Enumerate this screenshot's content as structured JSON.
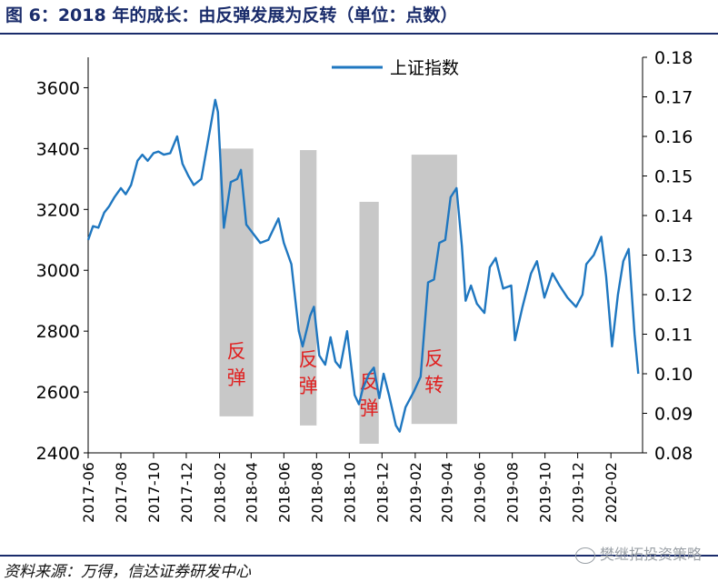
{
  "figure": {
    "title": "图 6：2018 年的成长：由反弹发展为反转（单位：点数）",
    "source": "资料来源：万得，信达证券研发中心",
    "watermark": "樊继拓投资策略"
  },
  "chart_data": {
    "type": "line",
    "title": "",
    "xlabel": "",
    "ylabel": "",
    "y_left_lim": [
      2400,
      3700
    ],
    "y_left_ticks": [
      "2400",
      "2600",
      "2800",
      "3000",
      "3200",
      "3400",
      "3600"
    ],
    "y_right_lim": [
      0.08,
      0.18
    ],
    "y_right_ticks": [
      "0.08",
      "0.09",
      "0.10",
      "0.11",
      "0.12",
      "0.13",
      "0.14",
      "0.15",
      "0.16",
      "0.17",
      "0.18"
    ],
    "x_ticks": [
      "2017-06",
      "2017-08",
      "2017-10",
      "2017-12",
      "2018-02",
      "2018-04",
      "2018-06",
      "2018-08",
      "2018-10",
      "2018-12",
      "2019-02",
      "2019-04",
      "2019-06",
      "2019-08",
      "2019-10",
      "2019-12",
      "2020-02"
    ],
    "legend": {
      "position": "top-center",
      "entries": [
        "上证指数"
      ]
    },
    "grid": false,
    "series": [
      {
        "name": "上证指数",
        "axis": "left",
        "color": "#1f77c0",
        "points": [
          [
            "2017-06-01",
            3100
          ],
          [
            "2017-06-10",
            3145
          ],
          [
            "2017-06-20",
            3140
          ],
          [
            "2017-07-01",
            3190
          ],
          [
            "2017-07-10",
            3210
          ],
          [
            "2017-07-20",
            3240
          ],
          [
            "2017-08-01",
            3270
          ],
          [
            "2017-08-10",
            3250
          ],
          [
            "2017-08-20",
            3280
          ],
          [
            "2017-09-01",
            3360
          ],
          [
            "2017-09-10",
            3380
          ],
          [
            "2017-09-20",
            3360
          ],
          [
            "2017-10-01",
            3385
          ],
          [
            "2017-10-10",
            3390
          ],
          [
            "2017-10-20",
            3380
          ],
          [
            "2017-11-01",
            3385
          ],
          [
            "2017-11-14",
            3440
          ],
          [
            "2017-11-24",
            3350
          ],
          [
            "2017-12-05",
            3310
          ],
          [
            "2017-12-15",
            3280
          ],
          [
            "2017-12-29",
            3300
          ],
          [
            "2018-01-10",
            3420
          ],
          [
            "2018-01-24",
            3560
          ],
          [
            "2018-01-29",
            3520
          ],
          [
            "2018-02-09",
            3140
          ],
          [
            "2018-02-22",
            3290
          ],
          [
            "2018-03-06",
            3300
          ],
          [
            "2018-03-13",
            3330
          ],
          [
            "2018-03-23",
            3150
          ],
          [
            "2018-04-05",
            3120
          ],
          [
            "2018-04-18",
            3090
          ],
          [
            "2018-05-03",
            3100
          ],
          [
            "2018-05-22",
            3170
          ],
          [
            "2018-06-01",
            3090
          ],
          [
            "2018-06-15",
            3020
          ],
          [
            "2018-06-29",
            2800
          ],
          [
            "2018-07-06",
            2750
          ],
          [
            "2018-07-20",
            2850
          ],
          [
            "2018-07-27",
            2880
          ],
          [
            "2018-08-06",
            2720
          ],
          [
            "2018-08-17",
            2690
          ],
          [
            "2018-08-27",
            2780
          ],
          [
            "2018-09-05",
            2700
          ],
          [
            "2018-09-14",
            2680
          ],
          [
            "2018-09-27",
            2800
          ],
          [
            "2018-10-11",
            2590
          ],
          [
            "2018-10-19",
            2560
          ],
          [
            "2018-10-26",
            2610
          ],
          [
            "2018-11-07",
            2660
          ],
          [
            "2018-11-16",
            2680
          ],
          [
            "2018-11-26",
            2580
          ],
          [
            "2018-12-04",
            2660
          ],
          [
            "2018-12-14",
            2590
          ],
          [
            "2018-12-27",
            2490
          ],
          [
            "2019-01-03",
            2470
          ],
          [
            "2019-01-14",
            2550
          ],
          [
            "2019-01-29",
            2600
          ],
          [
            "2019-02-11",
            2650
          ],
          [
            "2019-02-25",
            2960
          ],
          [
            "2019-03-08",
            2970
          ],
          [
            "2019-03-18",
            3090
          ],
          [
            "2019-03-29",
            3100
          ],
          [
            "2019-04-08",
            3240
          ],
          [
            "2019-04-19",
            3270
          ],
          [
            "2019-04-29",
            3080
          ],
          [
            "2019-05-06",
            2900
          ],
          [
            "2019-05-16",
            2950
          ],
          [
            "2019-05-27",
            2890
          ],
          [
            "2019-06-10",
            2860
          ],
          [
            "2019-06-20",
            3010
          ],
          [
            "2019-07-01",
            3040
          ],
          [
            "2019-07-15",
            2940
          ],
          [
            "2019-07-30",
            2950
          ],
          [
            "2019-08-06",
            2770
          ],
          [
            "2019-08-20",
            2880
          ],
          [
            "2019-09-05",
            2990
          ],
          [
            "2019-09-16",
            3030
          ],
          [
            "2019-09-30",
            2910
          ],
          [
            "2019-10-15",
            2990
          ],
          [
            "2019-10-28",
            2950
          ],
          [
            "2019-11-12",
            2910
          ],
          [
            "2019-11-28",
            2880
          ],
          [
            "2019-12-10",
            2920
          ],
          [
            "2019-12-17",
            3020
          ],
          [
            "2019-12-31",
            3050
          ],
          [
            "2020-01-14",
            3110
          ],
          [
            "2020-01-23",
            2980
          ],
          [
            "2020-02-03",
            2750
          ],
          [
            "2020-02-14",
            2920
          ],
          [
            "2020-02-24",
            3030
          ],
          [
            "2020-03-05",
            3070
          ],
          [
            "2020-03-16",
            2790
          ],
          [
            "2020-03-23",
            2660
          ]
        ]
      }
    ],
    "shaded_regions": [
      {
        "label": "反弹",
        "x_start": "2018-02-01",
        "x_end": "2018-04-05",
        "y_low": 2520,
        "y_high": 3400
      },
      {
        "label": "反弹",
        "x_start": "2018-07-01",
        "x_end": "2018-08-01",
        "y_low": 2490,
        "y_high": 3395
      },
      {
        "label": "反弹",
        "x_start": "2018-10-20",
        "x_end": "2018-11-25",
        "y_low": 2430,
        "y_high": 3225
      },
      {
        "label": "反转",
        "x_start": "2019-01-25",
        "x_end": "2019-04-20",
        "y_low": 2495,
        "y_high": 3380
      }
    ],
    "annotation_color": "#e02020",
    "shade_color": "#c8c8c8"
  }
}
